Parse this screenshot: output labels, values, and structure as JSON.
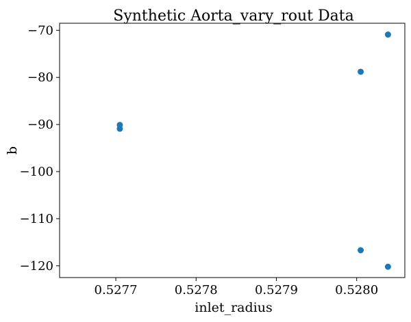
{
  "chart_data": {
    "type": "scatter",
    "title": "Synthetic Aorta_vary_rout Data",
    "xlabel": "inlet_radius",
    "ylabel": "b",
    "xlim": [
      0.52763,
      0.52806
    ],
    "ylim": [
      -122.5,
      -68.5
    ],
    "x_ticks": [
      {
        "value": 0.5277,
        "label": "0.5277"
      },
      {
        "value": 0.5278,
        "label": "0.5278"
      },
      {
        "value": 0.5279,
        "label": "0.5279"
      },
      {
        "value": 0.528,
        "label": "0.5280"
      }
    ],
    "y_ticks": [
      {
        "value": -70,
        "label": "−70"
      },
      {
        "value": -80,
        "label": "−80"
      },
      {
        "value": -90,
        "label": "−90"
      },
      {
        "value": -100,
        "label": "−100"
      },
      {
        "value": -110,
        "label": "−110"
      },
      {
        "value": -120,
        "label": "−120"
      }
    ],
    "grid": false,
    "marker_color": "#1f77b4",
    "points": [
      {
        "x": 0.527705,
        "y": -90.1
      },
      {
        "x": 0.527705,
        "y": -90.9
      },
      {
        "x": 0.528005,
        "y": -78.8
      },
      {
        "x": 0.528005,
        "y": -116.7
      },
      {
        "x": 0.528039,
        "y": -70.9
      },
      {
        "x": 0.528039,
        "y": -120.2
      }
    ]
  }
}
